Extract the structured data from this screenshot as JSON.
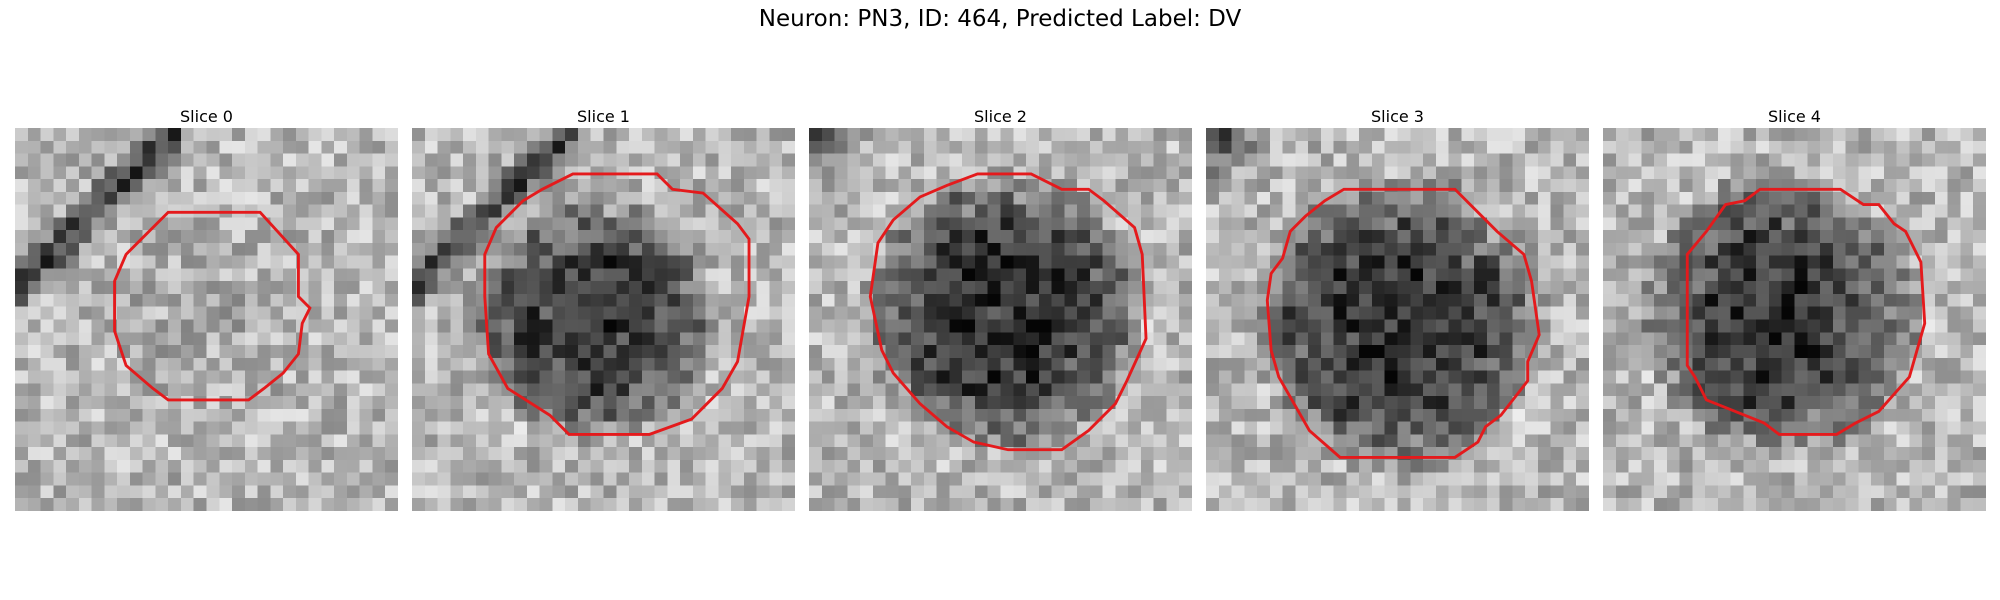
{
  "figure": {
    "title": "Neuron: PN3, ID: 464, Predicted Label: DV"
  },
  "colors": {
    "contour": "#e41a1c"
  },
  "panels": [
    {
      "title": "Slice 0",
      "style": "light-textured",
      "blob": [
        0.5,
        0.5,
        0.3,
        0.04
      ],
      "band": "top-left-dark",
      "contour": [
        [
          0.4,
          0.22
        ],
        [
          0.64,
          0.22
        ],
        [
          0.74,
          0.33
        ],
        [
          0.74,
          0.44
        ],
        [
          0.77,
          0.47
        ],
        [
          0.75,
          0.51
        ],
        [
          0.74,
          0.59
        ],
        [
          0.7,
          0.64
        ],
        [
          0.65,
          0.68
        ],
        [
          0.61,
          0.71
        ],
        [
          0.4,
          0.71
        ],
        [
          0.36,
          0.68
        ],
        [
          0.29,
          0.62
        ],
        [
          0.26,
          0.53
        ],
        [
          0.26,
          0.4
        ],
        [
          0.29,
          0.33
        ]
      ]
    },
    {
      "title": "Slice 1",
      "style": "dark-center",
      "blob": [
        0.47,
        0.5,
        0.34,
        0.5
      ],
      "band": "top-left-dark",
      "contour": [
        [
          0.42,
          0.12
        ],
        [
          0.64,
          0.12
        ],
        [
          0.68,
          0.16
        ],
        [
          0.76,
          0.17
        ],
        [
          0.85,
          0.25
        ],
        [
          0.88,
          0.29
        ],
        [
          0.88,
          0.44
        ],
        [
          0.85,
          0.61
        ],
        [
          0.81,
          0.68
        ],
        [
          0.73,
          0.76
        ],
        [
          0.62,
          0.8
        ],
        [
          0.41,
          0.8
        ],
        [
          0.36,
          0.75
        ],
        [
          0.25,
          0.68
        ],
        [
          0.2,
          0.59
        ],
        [
          0.19,
          0.44
        ],
        [
          0.19,
          0.33
        ],
        [
          0.22,
          0.26
        ],
        [
          0.29,
          0.19
        ],
        [
          0.34,
          0.16
        ]
      ]
    },
    {
      "title": "Slice 2",
      "style": "dark-center",
      "blob": [
        0.51,
        0.48,
        0.38,
        0.55
      ],
      "band": "top-left-corner",
      "contour": [
        [
          0.44,
          0.12
        ],
        [
          0.58,
          0.12
        ],
        [
          0.66,
          0.16
        ],
        [
          0.73,
          0.16
        ],
        [
          0.77,
          0.19
        ],
        [
          0.85,
          0.26
        ],
        [
          0.87,
          0.33
        ],
        [
          0.88,
          0.55
        ],
        [
          0.83,
          0.66
        ],
        [
          0.8,
          0.72
        ],
        [
          0.73,
          0.79
        ],
        [
          0.66,
          0.84
        ],
        [
          0.52,
          0.84
        ],
        [
          0.43,
          0.82
        ],
        [
          0.36,
          0.78
        ],
        [
          0.29,
          0.72
        ],
        [
          0.22,
          0.64
        ],
        [
          0.19,
          0.58
        ],
        [
          0.16,
          0.44
        ],
        [
          0.18,
          0.3
        ],
        [
          0.22,
          0.24
        ],
        [
          0.29,
          0.18
        ],
        [
          0.36,
          0.15
        ]
      ]
    },
    {
      "title": "Slice 3",
      "style": "dark-center",
      "blob": [
        0.5,
        0.51,
        0.4,
        0.55
      ],
      "band": "top-left-corner",
      "contour": [
        [
          0.36,
          0.16
        ],
        [
          0.65,
          0.16
        ],
        [
          0.69,
          0.2
        ],
        [
          0.76,
          0.27
        ],
        [
          0.83,
          0.33
        ],
        [
          0.85,
          0.4
        ],
        [
          0.87,
          0.54
        ],
        [
          0.84,
          0.61
        ],
        [
          0.84,
          0.66
        ],
        [
          0.77,
          0.75
        ],
        [
          0.73,
          0.78
        ],
        [
          0.71,
          0.82
        ],
        [
          0.65,
          0.86
        ],
        [
          0.35,
          0.86
        ],
        [
          0.27,
          0.79
        ],
        [
          0.23,
          0.72
        ],
        [
          0.19,
          0.65
        ],
        [
          0.17,
          0.58
        ],
        [
          0.16,
          0.45
        ],
        [
          0.17,
          0.38
        ],
        [
          0.2,
          0.34
        ],
        [
          0.22,
          0.27
        ],
        [
          0.26,
          0.23
        ],
        [
          0.31,
          0.19
        ]
      ]
    },
    {
      "title": "Slice 4",
      "style": "dark-center",
      "blob": [
        0.47,
        0.49,
        0.39,
        0.5
      ],
      "band": "none",
      "contour": [
        [
          0.41,
          0.16
        ],
        [
          0.62,
          0.16
        ],
        [
          0.68,
          0.2
        ],
        [
          0.72,
          0.2
        ],
        [
          0.76,
          0.25
        ],
        [
          0.79,
          0.27
        ],
        [
          0.83,
          0.35
        ],
        [
          0.84,
          0.51
        ],
        [
          0.8,
          0.65
        ],
        [
          0.72,
          0.74
        ],
        [
          0.66,
          0.77
        ],
        [
          0.61,
          0.8
        ],
        [
          0.46,
          0.8
        ],
        [
          0.42,
          0.77
        ],
        [
          0.32,
          0.73
        ],
        [
          0.27,
          0.71
        ],
        [
          0.24,
          0.65
        ],
        [
          0.22,
          0.62
        ],
        [
          0.22,
          0.33
        ],
        [
          0.27,
          0.27
        ],
        [
          0.32,
          0.2
        ],
        [
          0.37,
          0.19
        ]
      ]
    }
  ]
}
